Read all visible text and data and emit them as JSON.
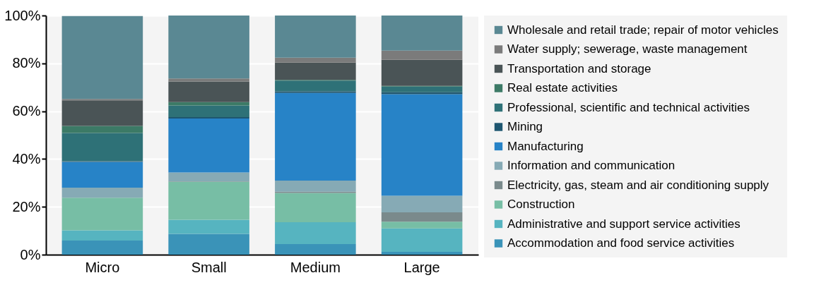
{
  "chart_data": {
    "type": "bar",
    "stacked": true,
    "categories": [
      "Micro",
      "Small",
      "Medium",
      "Large"
    ],
    "series": [
      {
        "name": "Accommodation and food service activities",
        "color": "#3a93b8",
        "values": [
          5.9,
          8.7,
          4.4,
          1.2
        ]
      },
      {
        "name": "Administrative and support service activities",
        "color": "#56b4c0",
        "values": [
          4.3,
          5.9,
          9.2,
          9.8
        ]
      },
      {
        "name": "Construction",
        "color": "#77bea5",
        "values": [
          13.6,
          15.9,
          12.2,
          2.8
        ]
      },
      {
        "name": "Electricity, gas, steam and air conditioning supply",
        "color": "#7a8a8c",
        "values": [
          null,
          0.2,
          0.5,
          3.9
        ]
      },
      {
        "name": "Information and communication",
        "color": "#86aab5",
        "values": [
          4.2,
          3.7,
          4.7,
          6.9
        ]
      },
      {
        "name": "Manufacturing",
        "color": "#2783c7",
        "values": [
          10.8,
          22.5,
          36.6,
          42.5
        ]
      },
      {
        "name": "Mining",
        "color": "#1e5670",
        "values": [
          0.3,
          0.6,
          0.7,
          0.8
        ]
      },
      {
        "name": "Professional, scientific and technical activities",
        "color": "#2e7177",
        "values": [
          11.8,
          4.9,
          4.5,
          2.4
        ]
      },
      {
        "name": "Real estate activities",
        "color": "#3c7a66",
        "values": [
          2.9,
          1.4,
          0.3,
          0.3
        ]
      },
      {
        "name": "Transportation and storage",
        "color": "#4a5456",
        "values": [
          10.7,
          8.6,
          7.2,
          10.9
        ]
      },
      {
        "name": "Water supply; sewerage, waste management",
        "color": "#7b7b7b",
        "values": [
          0.6,
          1.3,
          2.1,
          3.8
        ]
      },
      {
        "name": "Wholesale and retail trade; repair of motor vehicles",
        "color": "#5a8893",
        "values": [
          34.7,
          26.3,
          17.6,
          14.7
        ]
      }
    ],
    "ylim": [
      0,
      100
    ],
    "yticks": [
      {
        "value": 0,
        "label": "0%"
      },
      {
        "value": 20,
        "label": "20%"
      },
      {
        "value": 40,
        "label": "40%"
      },
      {
        "value": 60,
        "label": "60%"
      },
      {
        "value": 80,
        "label": "80%"
      },
      {
        "value": 100,
        "label": "100%"
      }
    ],
    "grid": "y",
    "legend": "right"
  }
}
